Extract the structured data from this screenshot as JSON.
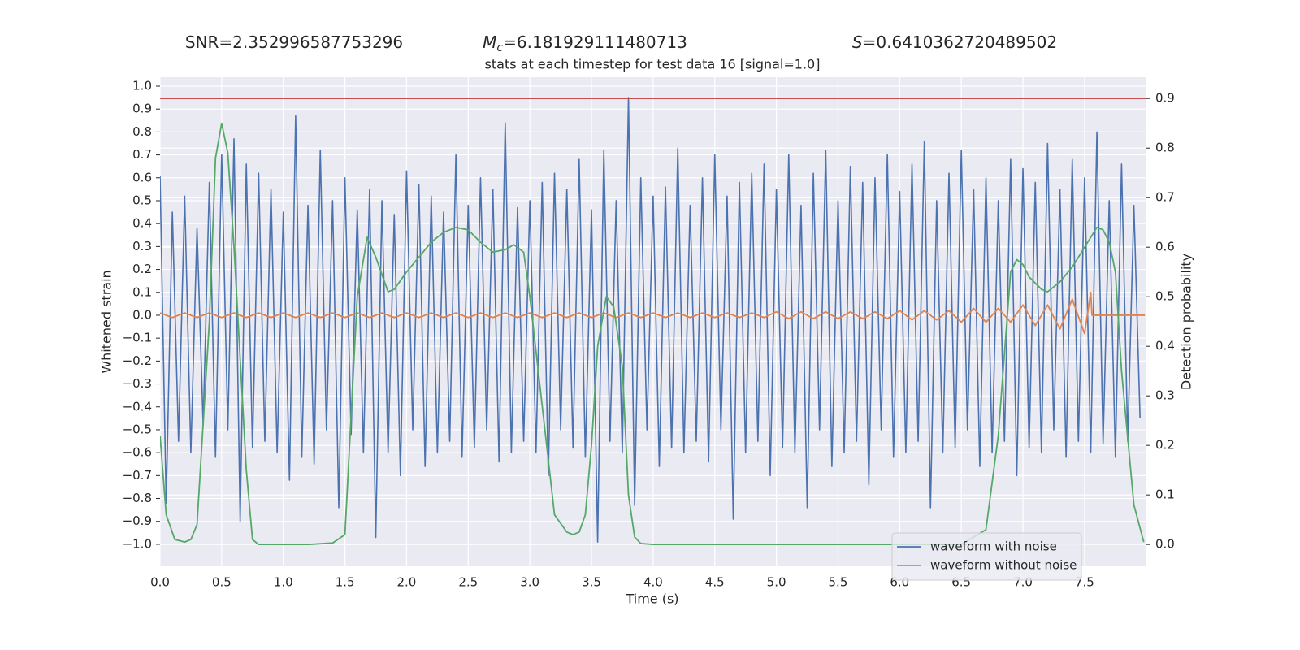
{
  "chart_data": {
    "type": "line",
    "annotations": [
      {
        "text": "SNR=2.352996587753296"
      },
      {
        "symbol": "M",
        "subscript": "c",
        "text": "=6.181929111480713"
      },
      {
        "symbol": "S",
        "text": "=0.6410362720489502"
      }
    ],
    "title": "stats at each timestep for test data 16 [signal=1.0]",
    "xlabel": "Time (s)",
    "ylabel": "Whitened strain",
    "y2label": "Detection probability",
    "xlim": [
      0,
      7.995
    ],
    "ylim": [
      -1.096,
      1.039
    ],
    "y2lim": [
      -0.044,
      0.943
    ],
    "xticks": [
      {
        "value": 0,
        "label": "0.0"
      },
      0.5,
      {
        "value": 1,
        "label": "1.0"
      },
      1.5,
      {
        "value": 2,
        "label": "2.0"
      },
      2.5,
      {
        "value": 3,
        "label": "3.0"
      },
      3.5,
      {
        "value": 4,
        "label": "4.0"
      },
      4.5,
      {
        "value": 5,
        "label": "5.0"
      },
      5.5,
      {
        "value": 6,
        "label": "6.0"
      },
      6.5,
      {
        "value": 7,
        "label": "7.0"
      },
      7.5
    ],
    "yticks": [
      {
        "value": -1,
        "label": "−1.0"
      },
      {
        "value": -0.9,
        "label": "−0.9"
      },
      {
        "value": -0.8,
        "label": "−0.8"
      },
      {
        "value": -0.7,
        "label": "−0.7"
      },
      {
        "value": -0.6,
        "label": "−0.6"
      },
      {
        "value": -0.5,
        "label": "−0.5"
      },
      {
        "value": -0.4,
        "label": "−0.4"
      },
      {
        "value": -0.3,
        "label": "−0.3"
      },
      {
        "value": -0.2,
        "label": "−0.2"
      },
      {
        "value": -0.1,
        "label": "−0.1"
      },
      {
        "value": 0,
        "label": "0.0"
      },
      0.1,
      0.2,
      0.3,
      0.4,
      0.5,
      0.6,
      0.7,
      0.8,
      0.9,
      {
        "value": 1,
        "label": "1.0"
      }
    ],
    "y2ticks": [
      {
        "value": 0,
        "label": "0.0"
      },
      0.1,
      0.2,
      0.3,
      0.4,
      0.5,
      0.6,
      0.7,
      0.8,
      0.9
    ],
    "grid": true,
    "legend": "lower right",
    "threshold": {
      "value": 0.9,
      "axis": "y2",
      "color": "#c44e52"
    },
    "series": [
      {
        "name": "waveform with noise",
        "color": "#4c72b0",
        "x": [
          0,
          0.05,
          0.1,
          0.15,
          0.2,
          0.25,
          0.3,
          0.35,
          0.4,
          0.45,
          0.5,
          0.55,
          0.6,
          0.65,
          0.7,
          0.75,
          0.8,
          0.85,
          0.9,
          0.95,
          1,
          1.05,
          1.1,
          1.15,
          1.2,
          1.25,
          1.3,
          1.35,
          1.4,
          1.45,
          1.5,
          1.55,
          1.6,
          1.65,
          1.7,
          1.75,
          1.8,
          1.85,
          1.9,
          1.95,
          2,
          2.05,
          2.1,
          2.15,
          2.2,
          2.25,
          2.3,
          2.35,
          2.4,
          2.45,
          2.5,
          2.55,
          2.6,
          2.65,
          2.7,
          2.75,
          2.8,
          2.85,
          2.9,
          2.95,
          3,
          3.05,
          3.1,
          3.15,
          3.2,
          3.25,
          3.3,
          3.35,
          3.4,
          3.45,
          3.5,
          3.55,
          3.6,
          3.65,
          3.7,
          3.75,
          3.8,
          3.85,
          3.9,
          3.95,
          4,
          4.05,
          4.1,
          4.15,
          4.2,
          4.25,
          4.3,
          4.35,
          4.4,
          4.45,
          4.5,
          4.55,
          4.6,
          4.65,
          4.7,
          4.75,
          4.8,
          4.85,
          4.9,
          4.95,
          5,
          5.05,
          5.1,
          5.15,
          5.2,
          5.25,
          5.3,
          5.35,
          5.4,
          5.45,
          5.5,
          5.55,
          5.6,
          5.65,
          5.7,
          5.75,
          5.8,
          5.85,
          5.9,
          5.95,
          6,
          6.05,
          6.1,
          6.15,
          6.2,
          6.25,
          6.3,
          6.35,
          6.4,
          6.45,
          6.5,
          6.55,
          6.6,
          6.65,
          6.7,
          6.75,
          6.8,
          6.85,
          6.9,
          6.95,
          7,
          7.05,
          7.1,
          7.15,
          7.2,
          7.25,
          7.3,
          7.35,
          7.4,
          7.45,
          7.5,
          7.55,
          7.6,
          7.65,
          7.7,
          7.75,
          7.8,
          7.85,
          7.9,
          7.95
        ],
        "values": [
          0.61,
          -0.82,
          0.45,
          -0.55,
          0.52,
          -0.6,
          0.38,
          -0.48,
          0.58,
          -0.62,
          0.7,
          -0.5,
          0.77,
          -0.9,
          0.66,
          -0.58,
          0.62,
          -0.55,
          0.55,
          -0.6,
          0.45,
          -0.72,
          0.87,
          -0.62,
          0.48,
          -0.65,
          0.72,
          -0.5,
          0.5,
          -0.84,
          0.6,
          -0.52,
          0.46,
          -0.6,
          0.55,
          -0.97,
          0.5,
          -0.6,
          0.44,
          -0.7,
          0.63,
          -0.5,
          0.57,
          -0.66,
          0.52,
          -0.6,
          0.45,
          -0.55,
          0.7,
          -0.62,
          0.48,
          -0.58,
          0.6,
          -0.5,
          0.55,
          -0.64,
          0.84,
          -0.6,
          0.47,
          -0.55,
          0.5,
          -0.6,
          0.58,
          -0.7,
          0.62,
          -0.5,
          0.55,
          -0.58,
          0.68,
          -0.62,
          0.46,
          -0.99,
          0.72,
          -0.55,
          0.5,
          -0.6,
          0.95,
          -0.83,
          0.6,
          -0.5,
          0.52,
          -0.66,
          0.56,
          -0.58,
          0.73,
          -0.6,
          0.48,
          -0.55,
          0.6,
          -0.64,
          0.7,
          -0.5,
          0.52,
          -0.89,
          0.58,
          -0.6,
          0.62,
          -0.55,
          0.66,
          -0.7,
          0.55,
          -0.58,
          0.7,
          -0.6,
          0.48,
          -0.84,
          0.62,
          -0.5,
          0.72,
          -0.66,
          0.5,
          -0.6,
          0.65,
          -0.55,
          0.58,
          -0.74,
          0.6,
          -0.5,
          0.7,
          -0.62,
          0.54,
          -0.6,
          0.66,
          -0.55,
          0.76,
          -0.84,
          0.5,
          -0.6,
          0.62,
          -0.58,
          0.72,
          -0.5,
          0.55,
          -0.66,
          0.6,
          -0.6,
          0.5,
          -0.55,
          0.68,
          -0.7,
          0.64,
          -0.58,
          0.58,
          -0.6,
          0.75,
          -0.5,
          0.55,
          -0.62,
          0.68,
          -0.55,
          0.6,
          -0.6,
          0.8,
          -0.56,
          0.5,
          -0.62,
          0.66,
          -0.55,
          0.48,
          -0.45
        ]
      },
      {
        "name": "waveform without noise",
        "color": "#dd8452",
        "x": [
          0,
          0.1,
          0.2,
          0.3,
          0.4,
          0.5,
          0.6,
          0.7,
          0.8,
          0.9,
          1,
          1.1,
          1.2,
          1.3,
          1.4,
          1.5,
          1.6,
          1.7,
          1.8,
          1.9,
          2,
          2.1,
          2.2,
          2.3,
          2.4,
          2.5,
          2.6,
          2.7,
          2.8,
          2.9,
          3,
          3.1,
          3.2,
          3.3,
          3.4,
          3.5,
          3.6,
          3.7,
          3.8,
          3.9,
          4,
          4.1,
          4.2,
          4.3,
          4.4,
          4.5,
          4.6,
          4.7,
          4.8,
          4.9,
          5,
          5.1,
          5.2,
          5.3,
          5.4,
          5.5,
          5.6,
          5.7,
          5.8,
          5.9,
          6,
          6.1,
          6.2,
          6.3,
          6.4,
          6.5,
          6.6,
          6.7,
          6.8,
          6.9,
          7,
          7.1,
          7.2,
          7.3,
          7.4,
          7.5,
          7.55,
          7.56,
          7.99
        ],
        "values": [
          0.01,
          -0.01,
          0.01,
          -0.01,
          0.01,
          -0.01,
          0.01,
          -0.01,
          0.01,
          -0.01,
          0.01,
          -0.01,
          0.01,
          -0.01,
          0.01,
          -0.01,
          0.01,
          -0.01,
          0.01,
          -0.01,
          0.01,
          -0.01,
          0.01,
          -0.01,
          0.01,
          -0.01,
          0.01,
          -0.01,
          0.01,
          -0.01,
          0.01,
          -0.01,
          0.01,
          -0.01,
          0.01,
          -0.01,
          0.01,
          -0.01,
          0.01,
          -0.01,
          0.01,
          -0.01,
          0.01,
          -0.01,
          0.01,
          -0.01,
          0.01,
          -0.01,
          0.01,
          -0.01,
          0.015,
          -0.015,
          0.015,
          -0.015,
          0.015,
          -0.015,
          0.015,
          -0.015,
          0.015,
          -0.015,
          0.02,
          -0.02,
          0.02,
          -0.02,
          0.02,
          -0.03,
          0.03,
          -0.03,
          0.03,
          -0.03,
          0.045,
          -0.045,
          0.045,
          -0.06,
          0.07,
          -0.08,
          0.1,
          0,
          0
        ]
      },
      {
        "axis": "y2",
        "color": "#55a868",
        "x": [
          0,
          0.05,
          0.12,
          0.2,
          0.25,
          0.3,
          0.4,
          0.45,
          0.5,
          0.55,
          0.6,
          0.7,
          0.75,
          0.8,
          1,
          1.2,
          1.4,
          1.5,
          1.6,
          1.68,
          1.75,
          1.85,
          1.9,
          2,
          2.1,
          2.2,
          2.3,
          2.4,
          2.5,
          2.6,
          2.7,
          2.8,
          2.87,
          2.95,
          3,
          3.1,
          3.2,
          3.3,
          3.35,
          3.4,
          3.45,
          3.5,
          3.55,
          3.62,
          3.68,
          3.75,
          3.8,
          3.85,
          3.9,
          4,
          5,
          6,
          6.5,
          6.7,
          6.8,
          6.9,
          6.95,
          7,
          7.05,
          7.15,
          7.2,
          7.3,
          7.4,
          7.5,
          7.6,
          7.65,
          7.7,
          7.75,
          7.8,
          7.9,
          7.98
        ],
        "values": [
          0.22,
          0.06,
          0.01,
          0.005,
          0.01,
          0.04,
          0.45,
          0.78,
          0.85,
          0.79,
          0.6,
          0.15,
          0.01,
          0,
          0,
          0,
          0.003,
          0.02,
          0.5,
          0.62,
          0.58,
          0.51,
          0.515,
          0.55,
          0.58,
          0.61,
          0.63,
          0.64,
          0.635,
          0.61,
          0.59,
          0.595,
          0.605,
          0.59,
          0.5,
          0.28,
          0.06,
          0.025,
          0.02,
          0.025,
          0.06,
          0.2,
          0.4,
          0.5,
          0.48,
          0.36,
          0.1,
          0.015,
          0.002,
          0,
          0,
          0,
          0,
          0.03,
          0.22,
          0.55,
          0.575,
          0.565,
          0.54,
          0.515,
          0.51,
          0.53,
          0.56,
          0.6,
          0.64,
          0.635,
          0.61,
          0.55,
          0.35,
          0.08,
          0.005
        ]
      }
    ]
  }
}
